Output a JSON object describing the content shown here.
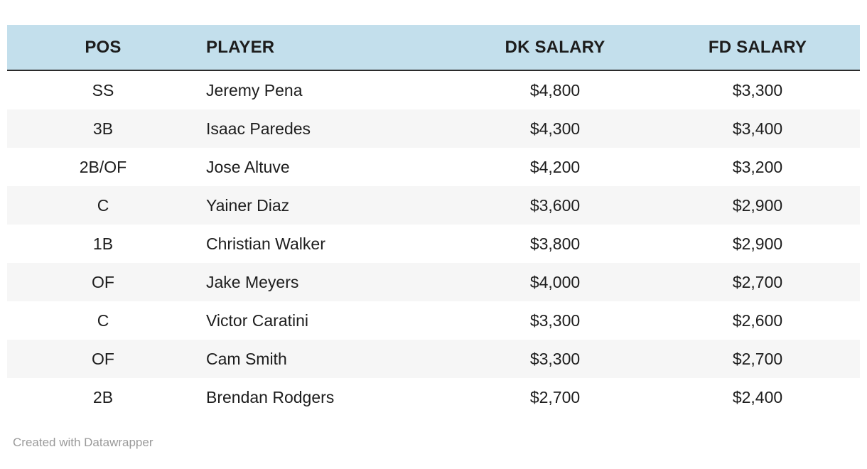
{
  "chart_data": {
    "type": "table",
    "title": "",
    "columns": [
      "POS",
      "PLAYER",
      "DK SALARY",
      "FD SALARY"
    ],
    "column_keys": [
      "pos",
      "player",
      "dk-salary",
      "fd-salary"
    ],
    "column_align": [
      "center",
      "left",
      "center",
      "center"
    ],
    "rows": [
      [
        "SS",
        "Jeremy Pena",
        "$4,800",
        "$3,300"
      ],
      [
        "3B",
        "Isaac Paredes",
        "$4,300",
        "$3,400"
      ],
      [
        "2B/OF",
        "Jose Altuve",
        "$4,200",
        "$3,200"
      ],
      [
        "C",
        "Yainer Diaz",
        "$3,600",
        "$2,900"
      ],
      [
        "1B",
        "Christian Walker",
        "$3,800",
        "$2,900"
      ],
      [
        "OF",
        "Jake Meyers",
        "$4,000",
        "$2,700"
      ],
      [
        "C",
        "Victor Caratini",
        "$3,300",
        "$2,600"
      ],
      [
        "OF",
        "Cam Smith",
        "$3,300",
        "$2,700"
      ],
      [
        "2B",
        "Brendan Rodgers",
        "$2,700",
        "$2,400"
      ]
    ]
  },
  "footer": {
    "credit": "Created with Datawrapper"
  },
  "colors": {
    "header_bg": "#c3dfec",
    "header_border": "#2b2b2b",
    "row_alt_bg": "#f6f6f6",
    "text": "#1d1d1d",
    "footer_text": "#9a9a9a"
  }
}
